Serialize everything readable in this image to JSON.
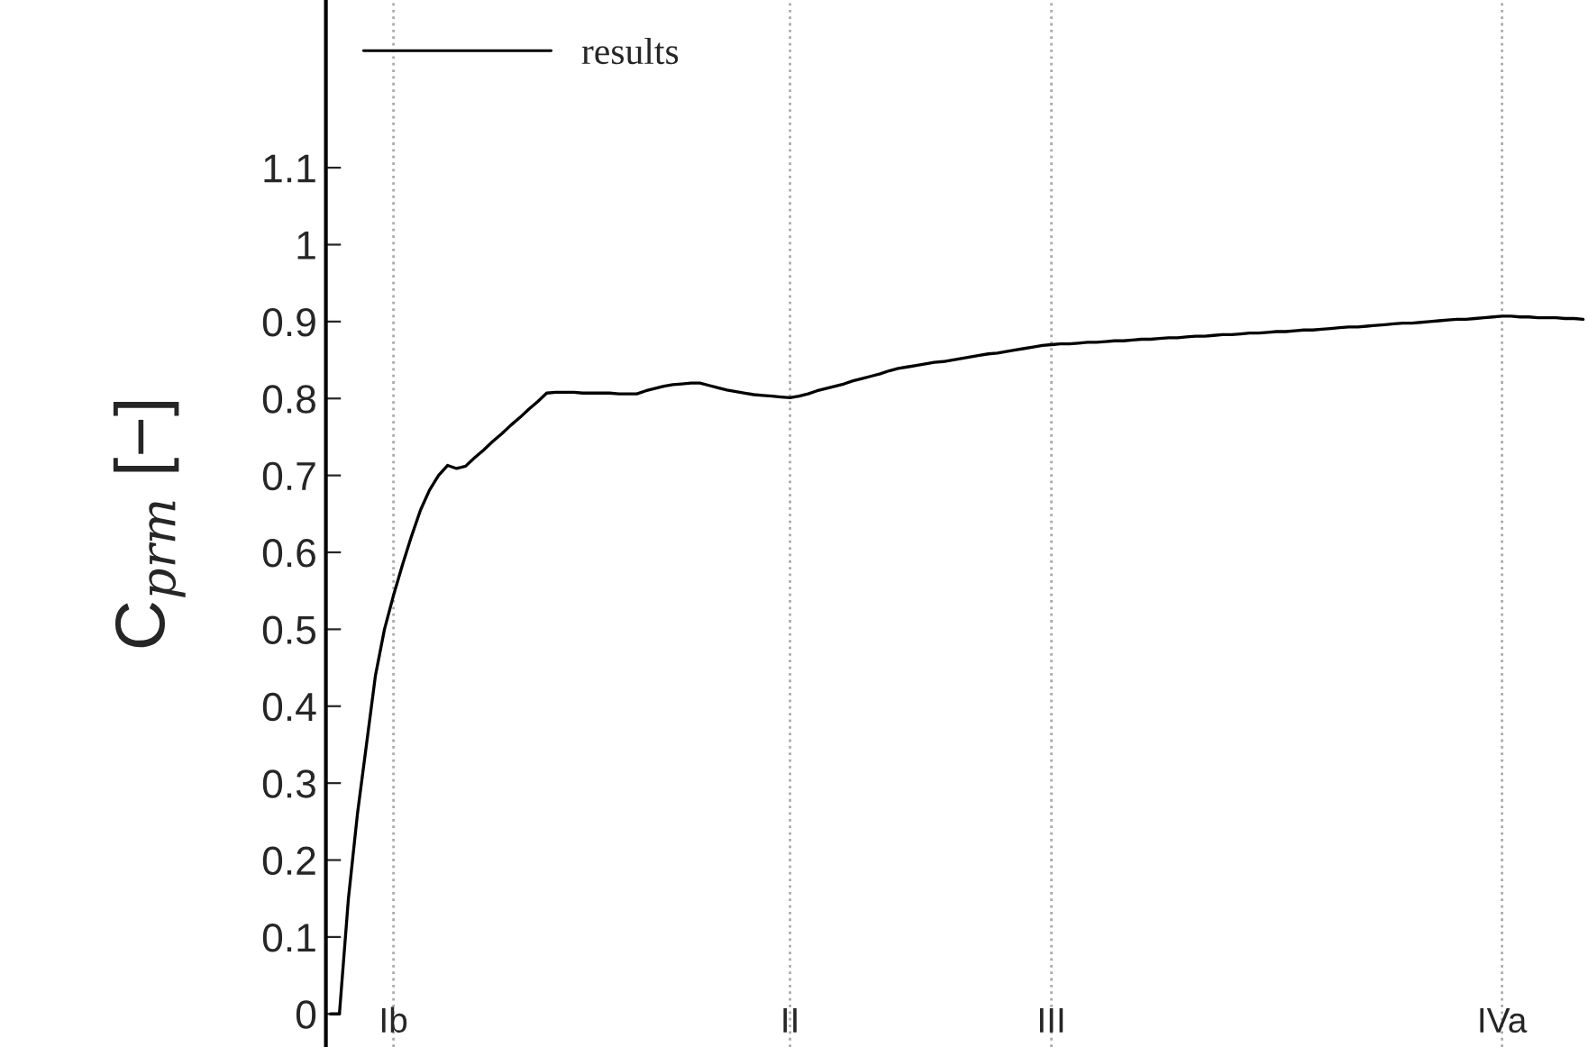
{
  "chart_data": {
    "type": "line",
    "ylabel": "C$_{prm}$ [−]",
    "legend": "top left",
    "grid": "x",
    "line_style": "solid",
    "ylim": [
      -0.043,
      1.318
    ],
    "yticks": [
      0,
      0.1,
      0.2,
      0.3,
      0.4,
      0.5,
      0.6,
      0.7,
      0.8,
      0.9,
      1,
      1.1
    ],
    "categories": [
      null,
      null,
      null,
      null,
      null,
      null,
      null,
      "Ib",
      null,
      null,
      null,
      null,
      null,
      null,
      null,
      null,
      null,
      null,
      null,
      null,
      null,
      null,
      null,
      null,
      null,
      null,
      null,
      null,
      null,
      null,
      null,
      null,
      null,
      null,
      null,
      null,
      null,
      null,
      null,
      null,
      null,
      null,
      null,
      null,
      null,
      null,
      null,
      null,
      null,
      null,
      null,
      "II",
      null,
      null,
      null,
      null,
      null,
      null,
      null,
      null,
      null,
      null,
      null,
      null,
      null,
      null,
      null,
      null,
      null,
      null,
      null,
      null,
      null,
      null,
      null,
      null,
      null,
      null,
      null,
      null,
      "III",
      null,
      null,
      null,
      null,
      null,
      null,
      null,
      null,
      null,
      null,
      null,
      null,
      null,
      null,
      null,
      null,
      null,
      null,
      null,
      null,
      null,
      null,
      null,
      null,
      null,
      null,
      null,
      null,
      null,
      null,
      null,
      null,
      null,
      null,
      null,
      null,
      null,
      null,
      null,
      null,
      null,
      null,
      null,
      null,
      null,
      null,
      null,
      null,
      null,
      "IVa",
      null,
      null,
      null,
      null,
      null,
      null,
      null,
      null,
      null
    ],
    "series": [
      {
        "name": "results",
        "color": "#000000",
        "values": [
          0,
          0,
          0.15,
          0.26,
          0.35,
          0.44,
          0.5,
          0.544,
          0.584,
          0.621,
          0.655,
          0.681,
          0.7,
          0.713,
          0.709,
          0.712,
          0.723,
          0.733,
          0.744,
          0.754,
          0.765,
          0.775,
          0.786,
          0.796,
          0.807,
          0.808,
          0.808,
          0.808,
          0.807,
          0.807,
          0.807,
          0.807,
          0.806,
          0.806,
          0.806,
          0.81,
          0.813,
          0.816,
          0.818,
          0.819,
          0.82,
          0.82,
          0.817,
          0.814,
          0.811,
          0.809,
          0.807,
          0.805,
          0.804,
          0.803,
          0.802,
          0.801,
          0.803,
          0.806,
          0.81,
          0.813,
          0.816,
          0.819,
          0.823,
          0.826,
          0.829,
          0.832,
          0.836,
          0.839,
          0.841,
          0.843,
          0.845,
          0.847,
          0.848,
          0.85,
          0.852,
          0.854,
          0.856,
          0.858,
          0.859,
          0.861,
          0.863,
          0.865,
          0.867,
          0.869,
          0.87,
          0.871,
          0.871,
          0.872,
          0.873,
          0.873,
          0.874,
          0.875,
          0.875,
          0.876,
          0.877,
          0.877,
          0.878,
          0.879,
          0.879,
          0.88,
          0.881,
          0.881,
          0.882,
          0.883,
          0.883,
          0.884,
          0.885,
          0.885,
          0.886,
          0.887,
          0.887,
          0.888,
          0.889,
          0.889,
          0.89,
          0.891,
          0.892,
          0.893,
          0.893,
          0.894,
          0.895,
          0.896,
          0.897,
          0.898,
          0.898,
          0.899,
          0.9,
          0.901,
          0.902,
          0.903,
          0.903,
          0.904,
          0.905,
          0.906,
          0.907,
          0.907,
          0.906,
          0.906,
          0.905,
          0.905,
          0.905,
          0.904,
          0.904,
          0.903
        ]
      }
    ]
  }
}
